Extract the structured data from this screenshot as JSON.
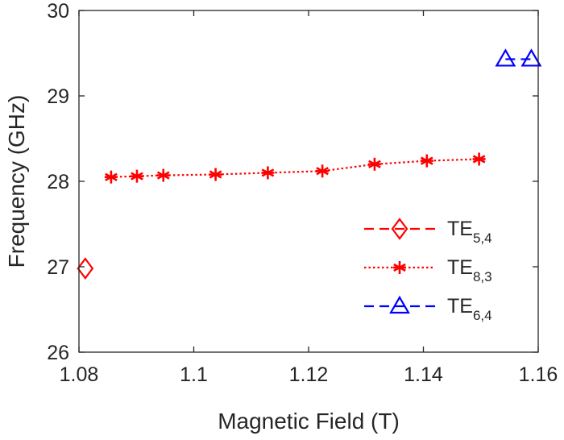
{
  "chart_data": {
    "type": "line",
    "title": "",
    "xlabel": "Magnetic Field (T)",
    "ylabel": "Frequency (GHz)",
    "xlim": [
      1.08,
      1.16
    ],
    "ylim": [
      26,
      30
    ],
    "x_ticks": [
      1.08,
      1.1,
      1.12,
      1.14,
      1.16
    ],
    "x_tick_labels": [
      "1.08",
      "1.1",
      "1.12",
      "1.14",
      "1.16"
    ],
    "y_ticks": [
      26,
      27,
      28,
      29,
      30
    ],
    "y_tick_labels": [
      "26",
      "27",
      "28",
      "29",
      "30"
    ],
    "grid": false,
    "legend_position": "right",
    "series": [
      {
        "name": "TE5,4",
        "name_main": "TE",
        "name_sub": "5,4",
        "color": "#ff0000",
        "line_style": "dashed",
        "marker": "diamond",
        "x": [
          1.0811
        ],
        "y": [
          26.98
        ]
      },
      {
        "name": "TE8,3",
        "name_main": "TE",
        "name_sub": "8,3",
        "color": "#ff0000",
        "line_style": "dotted",
        "marker": "asterisk",
        "x": [
          1.0856,
          1.0901,
          1.0947,
          1.1038,
          1.1129,
          1.1224,
          1.1315,
          1.1406,
          1.1497
        ],
        "y": [
          28.05,
          28.06,
          28.07,
          28.08,
          28.1,
          28.12,
          28.2,
          28.24,
          28.26
        ]
      },
      {
        "name": "TE6,4",
        "name_main": "TE",
        "name_sub": "6,4",
        "color": "#0000ff",
        "line_style": "dashed",
        "marker": "triangle",
        "x": [
          1.1543,
          1.1588
        ],
        "y": [
          29.43,
          29.43
        ]
      }
    ]
  }
}
